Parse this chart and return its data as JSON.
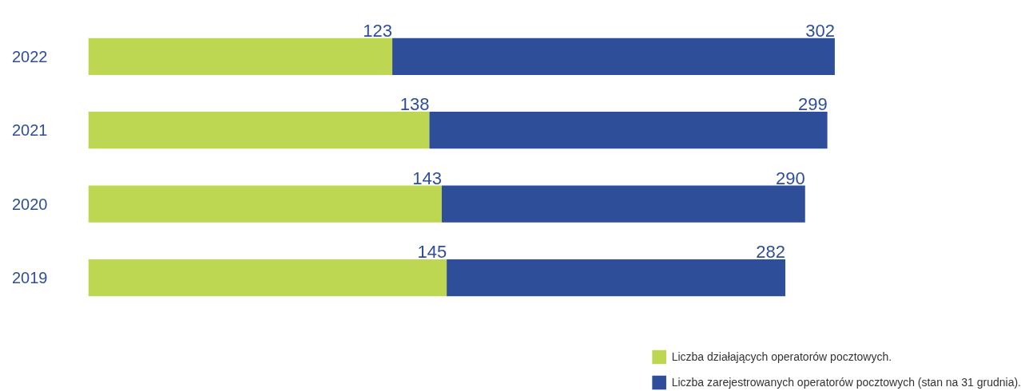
{
  "chart_data": {
    "type": "bar",
    "orientation": "horizontal",
    "stacked": true,
    "categories": [
      "2022",
      "2021",
      "2020",
      "2019"
    ],
    "series": [
      {
        "name": "Liczba działających operatorów pocztowych.",
        "color": "#bdd752",
        "values": [
          123,
          138,
          143,
          145
        ],
        "value_labels": [
          "123",
          "138",
          "143",
          "145"
        ]
      },
      {
        "name": "Liczba zarejestrowanych operatorów pocztowych (stan na 31 grudnia).",
        "color": "#2f4e9a",
        "values": [
          179,
          161,
          147,
          137
        ]
      }
    ],
    "totals": [
      "302",
      "299",
      "290",
      "282"
    ],
    "tick_labels": "y",
    "legend": "bottom right"
  }
}
